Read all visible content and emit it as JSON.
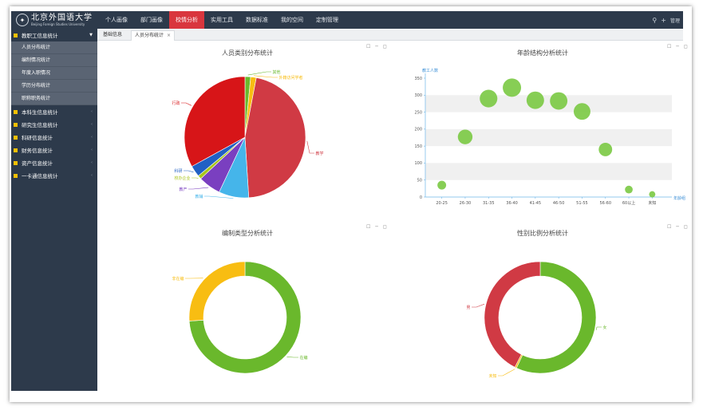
{
  "header": {
    "logo_cn": "北京外国语大学",
    "logo_en": "Beijing Foreign Studies University",
    "nav": [
      {
        "label": "个人画像",
        "active": false
      },
      {
        "label": "部门画像",
        "active": false
      },
      {
        "label": "校情分析",
        "active": true
      },
      {
        "label": "实用工具",
        "active": false
      },
      {
        "label": "数据标准",
        "active": false
      },
      {
        "label": "我的空间",
        "active": false
      },
      {
        "label": "定制管理",
        "active": false
      }
    ],
    "right_label": "管理"
  },
  "sidebar": {
    "groups": [
      {
        "label": "教职工信息统计",
        "open": true,
        "items": [
          "人员分布统计",
          "编制情况统计",
          "年度入职情况",
          "学历分布统计",
          "职称职务统计"
        ]
      },
      {
        "label": "本科生信息统计",
        "open": false,
        "items": []
      },
      {
        "label": "研究生信息统计",
        "open": false,
        "items": []
      },
      {
        "label": "科研信息统计",
        "open": false,
        "items": []
      },
      {
        "label": "财务信息统计",
        "open": false,
        "items": []
      },
      {
        "label": "资产信息统计",
        "open": false,
        "items": []
      },
      {
        "label": "一卡通信息统计",
        "open": false,
        "items": []
      }
    ]
  },
  "tabs": {
    "home": "基础信息",
    "current": "人员分布统计",
    "close": "×"
  },
  "toolbox": "☐ ─ ◻",
  "colors": {
    "green": "#6ab82c",
    "red": "#d03a44",
    "darkred": "#d71518",
    "blue": "#45b5ea",
    "purple": "#7a3fc0",
    "navy": "#2160c4",
    "yellow": "#f8bd12",
    "olive": "#a8c51a",
    "bubble": "#7ac943"
  },
  "chart_data": [
    {
      "type": "pie",
      "title": "人员类别分布统计",
      "slices": [
        {
          "label": "其他",
          "value": 1.5,
          "color": "#6ab82c"
        },
        {
          "label": "外籍访问学者",
          "value": 1.5,
          "color": "#f8bd12"
        },
        {
          "label": "教学",
          "value": 46,
          "color": "#d03a44"
        },
        {
          "label": "教辅",
          "value": 8,
          "color": "#45b5ea"
        },
        {
          "label": "教产",
          "value": 6,
          "color": "#7a3fc0"
        },
        {
          "label": "校办企业",
          "value": 1,
          "color": "#a8c51a"
        },
        {
          "label": "科研",
          "value": 3,
          "color": "#2160c4"
        },
        {
          "label": "行政",
          "value": 33,
          "color": "#d71518"
        }
      ]
    },
    {
      "type": "scatter",
      "title": "年龄结构分析统计",
      "ylabel": "教工人数",
      "xlabel": "年龄组",
      "ylim": [
        0,
        350
      ],
      "yticks": [
        0,
        50,
        100,
        150,
        200,
        250,
        300,
        350
      ],
      "categories": [
        "20-25",
        "26-30",
        "31-35",
        "36-40",
        "41-45",
        "46-50",
        "51-55",
        "56-60",
        "60以上",
        "未知"
      ],
      "values": [
        35,
        177,
        290,
        322,
        285,
        283,
        252,
        140,
        22,
        8
      ]
    },
    {
      "type": "pie",
      "title": "编制类型分析统计",
      "slices": [
        {
          "label": "在编",
          "value": 74,
          "color": "#6ab82c"
        },
        {
          "label": "非在编",
          "value": 26,
          "color": "#f8bd12"
        }
      ]
    },
    {
      "type": "pie",
      "title": "性别比例分析统计",
      "slices": [
        {
          "label": "女",
          "value": 57,
          "color": "#6ab82c"
        },
        {
          "label": "未知",
          "value": 0.5,
          "color": "#f8bd12"
        },
        {
          "label": "男",
          "value": 42.5,
          "color": "#d03a44"
        }
      ]
    }
  ]
}
